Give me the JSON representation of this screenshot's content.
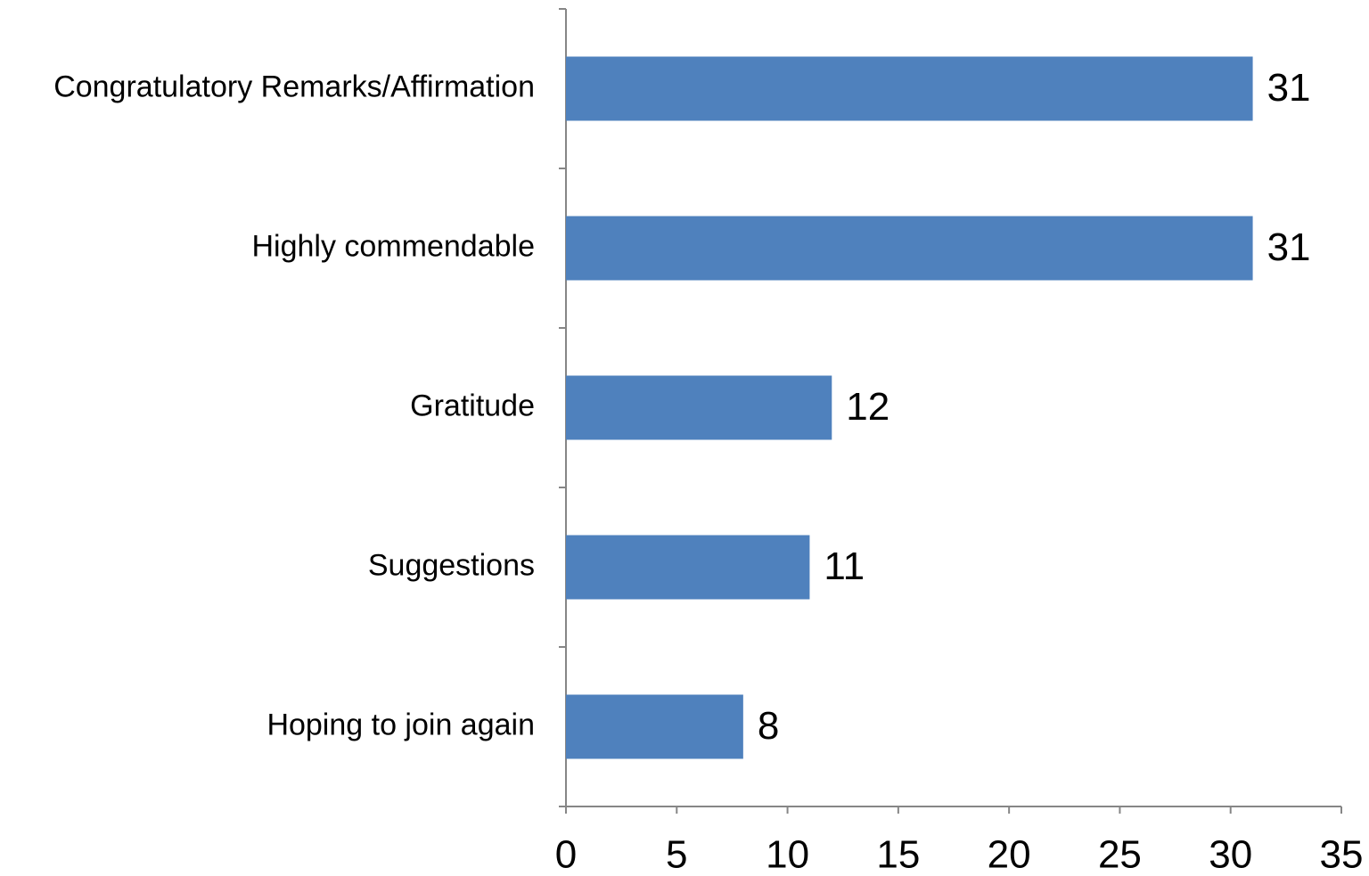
{
  "chart_data": {
    "type": "hbar",
    "categories": [
      "Congratulatory Remarks/Affirmation",
      "Highly commendable",
      "Gratitude",
      "Suggestions",
      "Hoping to join again"
    ],
    "values": [
      31,
      31,
      12,
      11,
      8
    ],
    "color": "#4f81bd",
    "xlim": [
      0,
      35
    ],
    "xticks": [
      0,
      5,
      10,
      15,
      20,
      25,
      30,
      35
    ],
    "grid": false
  }
}
